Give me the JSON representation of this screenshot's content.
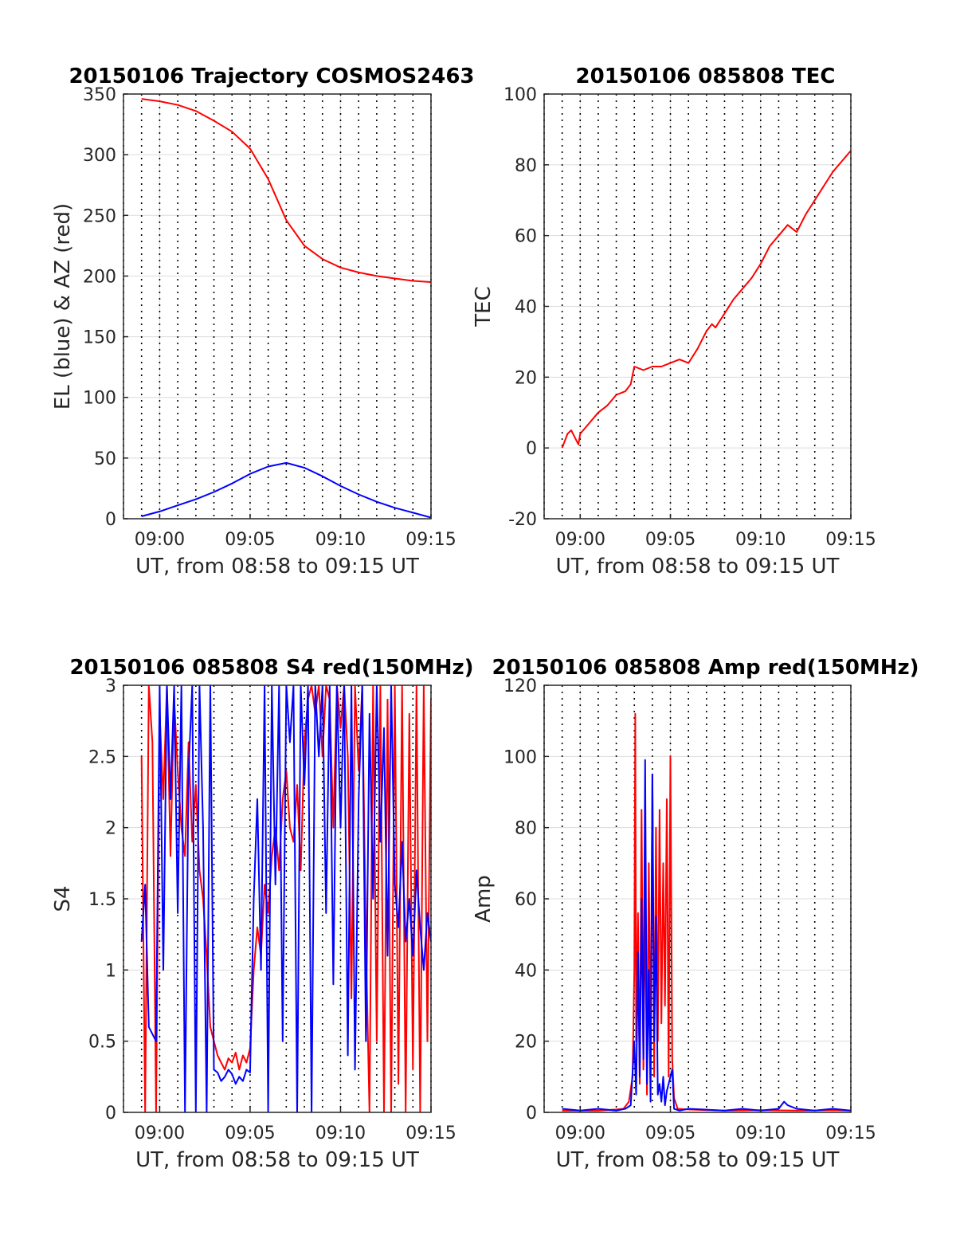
{
  "colors": {
    "el": "#0000ff",
    "az": "#ff0000",
    "grid": "#dcdcdc",
    "axis": "#262626"
  },
  "chart_data": [
    {
      "type": "line",
      "title": "20150106 Trajectory COSMOS2463",
      "xlabel": "UT, from 08:58 to 09:15 UT",
      "ylabel": "EL (blue) & AZ (red)",
      "xlim": [
        "08:58",
        "09:15"
      ],
      "ylim": [
        0,
        350
      ],
      "xticks": [
        "09:00",
        "09:05",
        "09:10",
        "09:15"
      ],
      "yticks": [
        0,
        50,
        100,
        150,
        200,
        250,
        300,
        350
      ],
      "grid": true,
      "minute_lines": "dotted, every minute",
      "series": [
        {
          "color": "#ff0000",
          "x": [
            -1,
            0,
            1,
            2,
            3,
            4,
            5,
            6,
            7,
            8,
            9,
            10,
            11,
            12,
            13,
            14,
            15
          ],
          "y": [
            346,
            344,
            341,
            336,
            328,
            319,
            305,
            280,
            246,
            225,
            214,
            207,
            203,
            200,
            198,
            196,
            195
          ]
        },
        {
          "color": "#0000ff",
          "x": [
            -1,
            0,
            1,
            2,
            3,
            4,
            5,
            6,
            7,
            8,
            9,
            10,
            11,
            12,
            13,
            14,
            15
          ],
          "y": [
            2,
            6,
            11,
            16,
            22,
            29,
            37,
            43,
            46,
            42,
            35,
            27,
            20,
            14,
            9,
            5,
            1
          ]
        }
      ]
    },
    {
      "type": "line",
      "title": "20150106 085808 TEC",
      "xlabel": "UT, from 08:58 to 09:15 UT",
      "ylabel": "TEC",
      "xlim": [
        "08:58",
        "09:15"
      ],
      "ylim": [
        -20,
        100
      ],
      "xticks": [
        "09:00",
        "09:05",
        "09:10",
        "09:15"
      ],
      "yticks": [
        -20,
        0,
        20,
        40,
        60,
        80,
        100
      ],
      "grid": true,
      "minute_lines": "dotted, every minute",
      "series": [
        {
          "color": "#ff0000",
          "x": [
            -1,
            -0.7,
            -0.5,
            -0.3,
            -0.1,
            0,
            0.5,
            1,
            1.5,
            2,
            2.5,
            2.8,
            3,
            3.5,
            4,
            4.5,
            5,
            5.5,
            6,
            6.5,
            7,
            7.3,
            7.5,
            8,
            8.5,
            9,
            9.5,
            10,
            10.5,
            11,
            11.5,
            12,
            12.5,
            13,
            13.5,
            14,
            14.5,
            15
          ],
          "y": [
            0,
            4,
            5,
            3,
            1,
            4,
            7,
            10,
            12,
            15,
            16,
            18,
            23,
            22,
            23,
            23,
            24,
            25,
            24,
            28,
            33,
            35,
            34,
            38,
            42,
            45,
            48,
            52,
            57,
            60,
            63,
            61,
            66,
            70,
            74,
            78,
            81,
            84
          ]
        }
      ]
    },
    {
      "type": "line",
      "title": "20150106 085808 S4 red(150MHz)",
      "xlabel": "UT, from 08:58 to 09:15 UT",
      "ylabel": "S4",
      "xlim": [
        "08:58",
        "09:15"
      ],
      "ylim": [
        0,
        3
      ],
      "xticks": [
        "09:00",
        "09:05",
        "09:10",
        "09:15"
      ],
      "yticks": [
        0,
        0.5,
        1,
        1.5,
        2,
        2.5,
        3
      ],
      "grid": true,
      "minute_lines": "dotted, every minute",
      "series": [
        {
          "color": "#ff0000",
          "x": [
            -1,
            -0.8,
            -0.6,
            -0.4,
            -0.2,
            0,
            0.2,
            0.4,
            0.6,
            0.8,
            1,
            1.2,
            1.4,
            1.6,
            1.8,
            2,
            2.2,
            2.4,
            2.6,
            2.8,
            3,
            3.2,
            3.4,
            3.6,
            3.8,
            4,
            4.2,
            4.4,
            4.6,
            4.8,
            5,
            5.2,
            5.4,
            5.6,
            5.8,
            6,
            6.2,
            6.4,
            6.6,
            6.8,
            7,
            7.2,
            7.4,
            7.6,
            7.8,
            8,
            8.2,
            8.4,
            8.6,
            8.8,
            9,
            9.2,
            9.4,
            9.6,
            9.8,
            10,
            10.2,
            10.4,
            10.6,
            10.8,
            11,
            11.2,
            11.4,
            11.6,
            11.8,
            12,
            12.2,
            12.4,
            12.6,
            12.8,
            13,
            13.2,
            13.4,
            13.6,
            13.8,
            14,
            14.2,
            14.4,
            14.6,
            14.8,
            15
          ],
          "y": [
            2.5,
            0,
            3,
            2.6,
            0,
            2.8,
            2.2,
            3,
            1.8,
            2.9,
            2.4,
            2.0,
            1.8,
            2.6,
            1.9,
            2.3,
            1.7,
            1.5,
            1.1,
            0.6,
            0.5,
            0.4,
            0.35,
            0.3,
            0.38,
            0.35,
            0.42,
            0.3,
            0.4,
            0.35,
            0.45,
            1.0,
            1.3,
            1.1,
            1.6,
            1.4,
            1.8,
            2.0,
            1.7,
            2.2,
            2.4,
            2.0,
            1.9,
            2.3,
            1.7,
            2.6,
            2.9,
            3,
            2.8,
            3,
            2.5,
            3,
            2.9,
            2.0,
            3,
            2.7,
            3,
            2.5,
            0.8,
            3,
            2.4,
            3,
            1.2,
            0,
            3,
            0.5,
            3,
            0,
            2.9,
            0,
            3,
            0.2,
            3,
            0,
            2.8,
            0.3,
            3,
            0,
            3,
            0.5,
            2.9
          ]
        },
        {
          "color": "#0000ff",
          "x": [
            -1,
            -0.8,
            -0.6,
            -0.4,
            -0.2,
            0,
            0.2,
            0.4,
            0.6,
            0.8,
            1,
            1.2,
            1.4,
            1.6,
            1.8,
            2,
            2.2,
            2.4,
            2.6,
            2.8,
            3,
            3.2,
            3.4,
            3.6,
            3.8,
            4,
            4.2,
            4.4,
            4.6,
            4.8,
            5,
            5.2,
            5.4,
            5.6,
            5.8,
            6,
            6.2,
            6.4,
            6.6,
            6.8,
            7,
            7.2,
            7.4,
            7.6,
            7.8,
            8,
            8.2,
            8.4,
            8.6,
            8.8,
            9,
            9.2,
            9.4,
            9.6,
            9.8,
            10,
            10.2,
            10.4,
            10.6,
            10.8,
            11,
            11.2,
            11.4,
            11.6,
            11.8,
            12,
            12.2,
            12.4,
            12.6,
            12.8,
            13,
            13.2,
            13.4,
            13.6,
            13.8,
            14,
            14.2,
            14.4,
            14.6,
            14.8,
            15
          ],
          "y": [
            1.2,
            1.6,
            0.6,
            0.55,
            0.5,
            3,
            1.0,
            3,
            2.2,
            3,
            1.4,
            3,
            0,
            2.4,
            3,
            0,
            3,
            2.0,
            0,
            3,
            0.3,
            0.28,
            0.22,
            0.25,
            0.3,
            0.27,
            0.2,
            0.25,
            0.22,
            0.3,
            0.28,
            1.5,
            2.2,
            1.0,
            3,
            0,
            3,
            1.6,
            3,
            0.5,
            3,
            2.6,
            3,
            0,
            3,
            2.3,
            3,
            0,
            3,
            2.5,
            3,
            1.4,
            3,
            0.9,
            3,
            2.0,
            3,
            0.4,
            3,
            0.3,
            2.2,
            3,
            0.5,
            2.8,
            1.5,
            3,
            1.9,
            2.7,
            1.1,
            3,
            1.6,
            1.3,
            1.9,
            1.2,
            1.5,
            1.1,
            1.7,
            1.3,
            1.0,
            1.4,
            1.2
          ]
        }
      ]
    },
    {
      "type": "line",
      "title": "20150106 085808 Amp red(150MHz)",
      "xlabel": "UT, from 08:58 to 09:15 UT",
      "ylabel": "Amp",
      "xlim": [
        "08:58",
        "09:15"
      ],
      "ylim": [
        0,
        120
      ],
      "xticks": [
        "09:00",
        "09:05",
        "09:10",
        "09:15"
      ],
      "yticks": [
        0,
        20,
        40,
        60,
        80,
        100,
        120
      ],
      "grid": true,
      "minute_lines": "dotted, every minute",
      "series": [
        {
          "color": "#ff0000",
          "x": [
            -1,
            0,
            1,
            2,
            2.4,
            2.7,
            2.9,
            3.0,
            3.05,
            3.1,
            3.2,
            3.3,
            3.4,
            3.5,
            3.6,
            3.7,
            3.8,
            3.9,
            4.0,
            4.1,
            4.2,
            4.3,
            4.4,
            4.5,
            4.6,
            4.7,
            4.8,
            4.9,
            5.0,
            5.1,
            5.2,
            5.4,
            6,
            8,
            10,
            12,
            14,
            15
          ],
          "y": [
            0.5,
            0.5,
            0.5,
            0.8,
            1,
            3,
            10,
            40,
            112,
            20,
            56,
            8,
            85,
            12,
            60,
            5,
            70,
            15,
            95,
            10,
            80,
            20,
            85,
            25,
            70,
            30,
            88,
            10,
            100,
            15,
            4,
            1,
            0.8,
            0.5,
            0.6,
            0.5,
            0.6,
            0.5
          ]
        },
        {
          "color": "#0000ff",
          "x": [
            -1,
            0,
            1,
            2,
            2.5,
            2.8,
            3.0,
            3.1,
            3.2,
            3.3,
            3.4,
            3.5,
            3.6,
            3.7,
            3.8,
            3.9,
            4.0,
            4.1,
            4.2,
            4.3,
            4.4,
            4.5,
            4.6,
            4.7,
            4.8,
            4.9,
            5.0,
            5.1,
            5.2,
            5.5,
            6,
            8,
            9,
            10,
            11,
            11.3,
            11.5,
            12,
            13,
            14,
            15
          ],
          "y": [
            1,
            0.5,
            1,
            0.5,
            1,
            2,
            20,
            5,
            45,
            10,
            60,
            15,
            99,
            8,
            40,
            3,
            95,
            20,
            55,
            5,
            8,
            3,
            10,
            2,
            6,
            8,
            10,
            12,
            1,
            0.5,
            1,
            0.5,
            1,
            0.5,
            1,
            3,
            2,
            1,
            0.5,
            1,
            0.5
          ]
        }
      ]
    }
  ]
}
